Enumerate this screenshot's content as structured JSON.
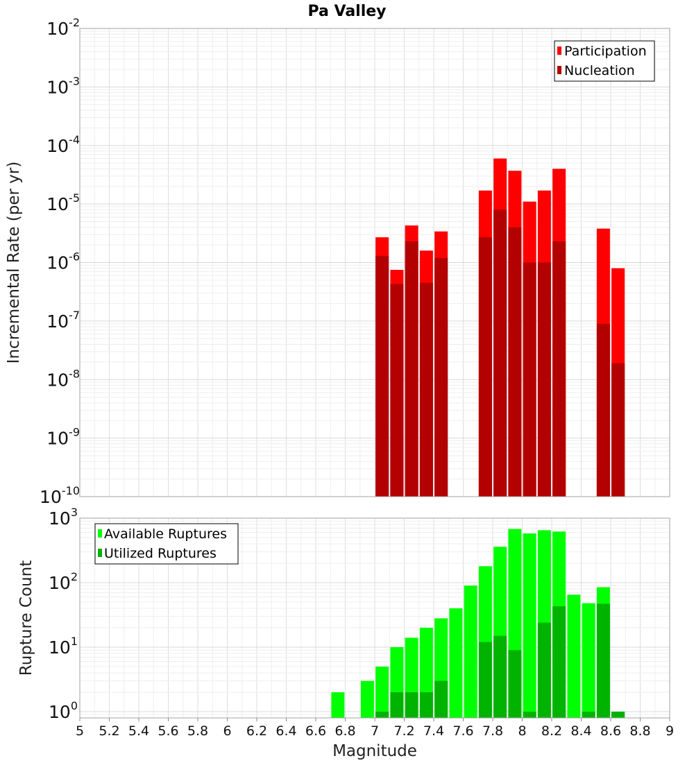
{
  "colors": {
    "participation": "#ff0000",
    "nucleation": "#b30000",
    "available": "#00ff00",
    "utilized": "#00b300",
    "grid": "#e6e6e6",
    "frame": "#a0a0a0"
  },
  "chart_data": [
    {
      "type": "bar",
      "title": "Pa Valley",
      "xlabel": "",
      "ylabel": "Incremental Rate (per yr)",
      "yscale": "log",
      "ylim_exponents": [
        -10,
        -2
      ],
      "ytick_exponents": [
        -10,
        -9,
        -8,
        -7,
        -6,
        -5,
        -4,
        -3,
        -2
      ],
      "xlim": [
        5,
        9
      ],
      "grid": true,
      "legend_position": "top-right",
      "legend": [
        "Participation",
        "Nucleation"
      ],
      "series": [
        {
          "name": "Participation",
          "x": [
            7.05,
            7.15,
            7.25,
            7.35,
            7.45,
            7.75,
            7.85,
            7.95,
            8.05,
            8.15,
            8.25,
            8.55,
            8.65
          ],
          "values": [
            2.7e-06,
            7.5e-07,
            4.3e-06,
            1.6e-06,
            3.4e-06,
            1.7e-05,
            6e-05,
            3.7e-05,
            1.1e-05,
            1.7e-05,
            4e-05,
            3.8e-06,
            8e-07
          ]
        },
        {
          "name": "Nucleation",
          "x": [
            7.05,
            7.15,
            7.25,
            7.35,
            7.45,
            7.75,
            7.85,
            7.95,
            8.05,
            8.15,
            8.25,
            8.55,
            8.65
          ],
          "values": [
            1.3e-06,
            4.3e-07,
            2.3e-06,
            4.5e-07,
            1.2e-06,
            2.7e-06,
            8e-06,
            4e-06,
            1e-06,
            1e-06,
            2.3e-06,
            9e-08,
            1.9e-08
          ]
        }
      ]
    },
    {
      "type": "bar",
      "title": "",
      "xlabel": "Magnitude",
      "ylabel": "Rupture Count",
      "yscale": "log",
      "ylim": [
        0.8,
        1000
      ],
      "ytick_exponents": [
        0,
        1,
        2,
        3
      ],
      "xlim": [
        5,
        9
      ],
      "xticks": [
        "5",
        "5.2",
        "5.4",
        "5.6",
        "5.8",
        "6",
        "6.2",
        "6.4",
        "6.6",
        "6.8",
        "7",
        "7.2",
        "7.4",
        "7.6",
        "7.8",
        "8",
        "8.2",
        "8.4",
        "8.6",
        "8.8",
        "9"
      ],
      "grid": true,
      "legend_position": "top-left",
      "legend": [
        "Available Ruptures",
        "Utilized Ruptures"
      ],
      "series": [
        {
          "name": "Available Ruptures",
          "x": [
            6.75,
            6.95,
            7.05,
            7.15,
            7.25,
            7.35,
            7.45,
            7.55,
            7.65,
            7.75,
            7.85,
            7.95,
            8.05,
            8.15,
            8.25,
            8.35,
            8.45,
            8.55,
            8.65
          ],
          "values": [
            2,
            3,
            5,
            10,
            14,
            20,
            28,
            40,
            90,
            180,
            360,
            680,
            580,
            650,
            620,
            65,
            48,
            85,
            1
          ]
        },
        {
          "name": "Utilized Ruptures",
          "x": [
            7.05,
            7.15,
            7.25,
            7.35,
            7.45,
            7.75,
            7.85,
            7.95,
            8.05,
            8.15,
            8.25,
            8.45,
            8.55,
            8.65
          ],
          "values": [
            1,
            2,
            2,
            2,
            3,
            12,
            15,
            9,
            1,
            24,
            43,
            1,
            47,
            1
          ]
        }
      ]
    }
  ]
}
